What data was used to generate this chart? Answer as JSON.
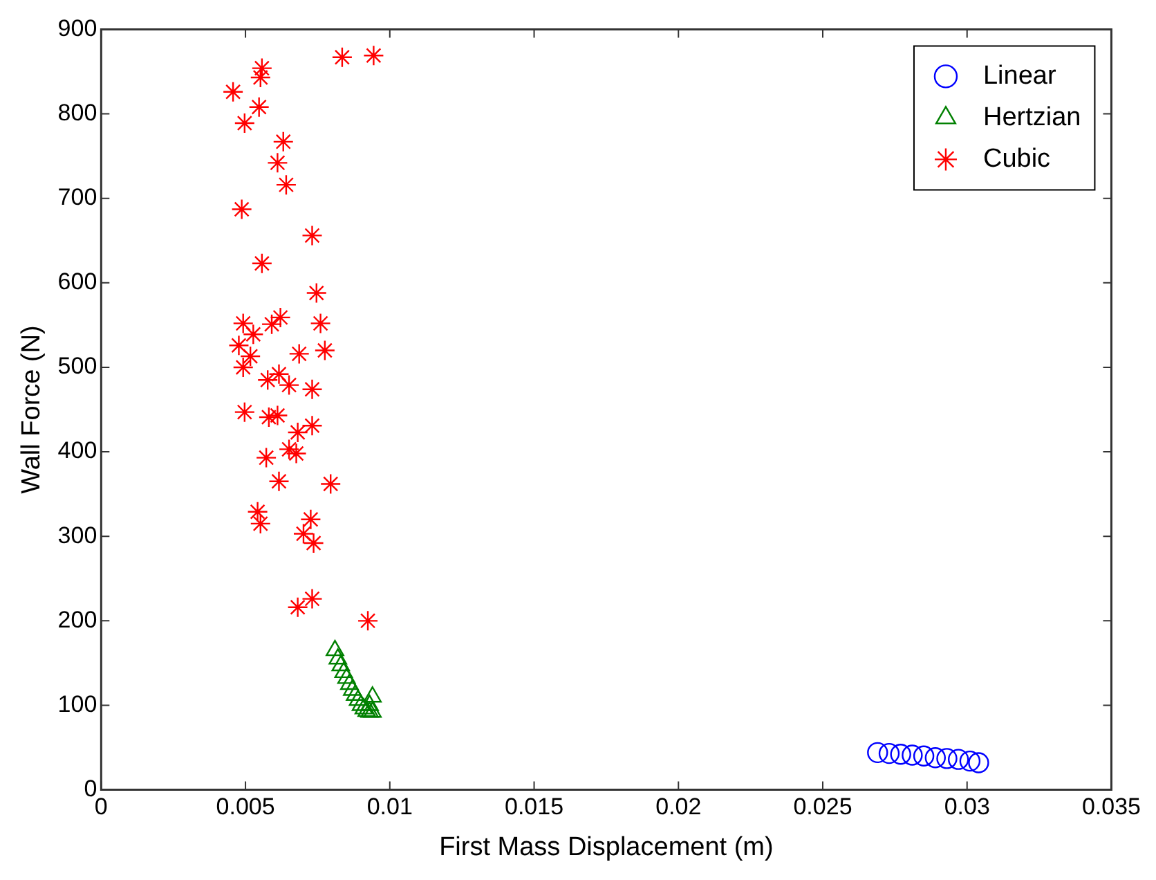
{
  "chart_data": {
    "type": "scatter",
    "xlabel": "First Mass Displacement (m)",
    "ylabel": "Wall Force (N)",
    "xlim": [
      0,
      0.035
    ],
    "xticks": [
      0,
      0.005,
      0.01,
      0.015,
      0.02,
      0.025,
      0.03,
      0.035
    ],
    "ylim": [
      0,
      900
    ],
    "yticks": [
      0,
      100,
      200,
      300,
      400,
      500,
      600,
      700,
      800,
      900
    ],
    "grid": false,
    "legend": "top right",
    "series": [
      {
        "name": "Linear",
        "color": "#0000ff",
        "marker": "circle",
        "x": [
          0.0269,
          0.0273,
          0.0277,
          0.0281,
          0.0285,
          0.0289,
          0.0293,
          0.0297,
          0.0301,
          0.0304
        ],
        "values": [
          44,
          43,
          42,
          41,
          40,
          38,
          37,
          36,
          34,
          32
        ]
      },
      {
        "name": "Hertzian",
        "color": "#008000",
        "marker": "triangle",
        "x": [
          0.0081,
          0.0082,
          0.0083,
          0.0084,
          0.0085,
          0.0086,
          0.0087,
          0.0088,
          0.0089,
          0.009,
          0.0091,
          0.0092,
          0.0093,
          0.0094,
          0.0094,
          0.0093
        ],
        "values": [
          165,
          155,
          147,
          139,
          132,
          125,
          118,
          112,
          106,
          100,
          96,
          93,
          92,
          92,
          110,
          100
        ]
      },
      {
        "name": "Cubic",
        "color": "#ff0000",
        "marker": "cross",
        "x": [
          0.00457,
          0.00557,
          0.00552,
          0.00547,
          0.00497,
          0.00835,
          0.00944,
          0.00631,
          0.00611,
          0.00641,
          0.00487,
          0.00731,
          0.00557,
          0.00746,
          0.00492,
          0.00527,
          0.00591,
          0.00621,
          0.0076,
          0.00477,
          0.00517,
          0.00686,
          0.00775,
          0.00492,
          0.00577,
          0.00616,
          0.00651,
          0.00731,
          0.00497,
          0.00581,
          0.00611,
          0.00681,
          0.00731,
          0.00651,
          0.00676,
          0.00572,
          0.00616,
          0.00795,
          0.00542,
          0.00552,
          0.00726,
          0.00701,
          0.00736,
          0.00681,
          0.00731,
          0.00924
        ],
        "values": [
          826,
          854,
          843,
          808,
          789,
          867,
          869,
          767,
          742,
          716,
          687,
          656,
          623,
          588,
          552,
          539,
          551,
          559,
          552,
          526,
          513,
          516,
          520,
          500,
          485,
          492,
          479,
          474,
          447,
          441,
          443,
          423,
          431,
          403,
          398,
          393,
          365,
          362,
          329,
          315,
          320,
          303,
          292,
          216,
          226,
          200
        ]
      }
    ]
  }
}
